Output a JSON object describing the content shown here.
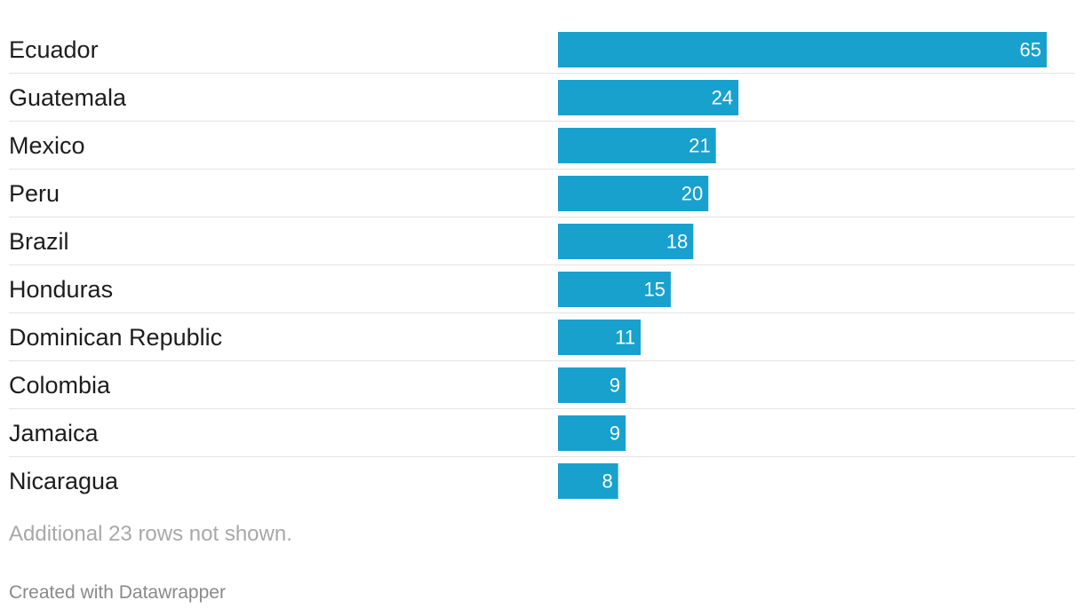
{
  "chart_data": {
    "type": "bar",
    "orientation": "horizontal",
    "categories": [
      "Ecuador",
      "Guatemala",
      "Mexico",
      "Peru",
      "Brazil",
      "Honduras",
      "Dominican Republic",
      "Colombia",
      "Jamaica",
      "Nicaragua"
    ],
    "values": [
      65,
      24,
      21,
      20,
      18,
      15,
      11,
      9,
      9,
      8
    ],
    "value_labels": [
      "65",
      "24",
      "21",
      "20",
      "18",
      "15",
      "11",
      "9",
      "9",
      "8"
    ],
    "bar_color": "#18a1cd",
    "grid": false,
    "legend": "none"
  },
  "notes": "Additional 23 rows not shown.",
  "footer": {
    "credit": "Created with Datawrapper"
  }
}
